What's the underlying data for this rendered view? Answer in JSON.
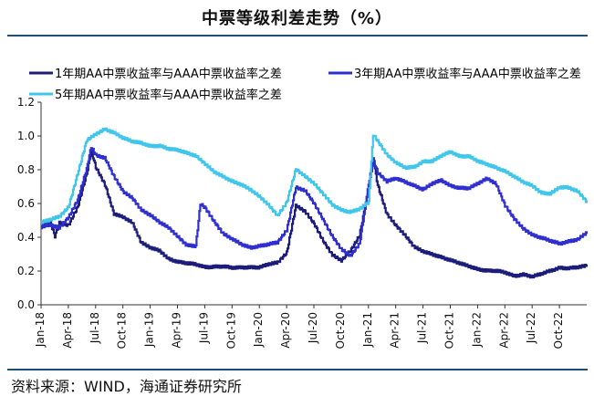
{
  "title": "中票等级利差走势（%）",
  "source": "资料来源：WIND，海通证券研究所",
  "colors": {
    "series1": "#1c1c7a",
    "series2": "#2f2fd1",
    "series3": "#3fc6ea",
    "frame": "#1f4e79"
  },
  "chart_data": {
    "type": "line",
    "title": "中票等级利差走势（%）",
    "ylim": [
      0,
      1.2
    ],
    "yticks": [
      "0.0",
      "0.2",
      "0.4",
      "0.6",
      "0.8",
      "1.0",
      "1.2"
    ],
    "xticks": [
      "Jan-18",
      "Apr-18",
      "Jul-18",
      "Oct-18",
      "Jan-19",
      "Apr-19",
      "Jul-19",
      "Oct-19",
      "Jan-20",
      "Apr-20",
      "Jul-20",
      "Oct-20",
      "Jan-21",
      "Apr-21",
      "Jul-21",
      "Oct-21",
      "Jan-22",
      "Apr-22",
      "Jul-22",
      "Oct-22"
    ],
    "x_month_range": [
      0,
      60
    ],
    "legend_position": "top",
    "series": [
      {
        "name": "1年期AA中票收益率与AAA中票收益率之差",
        "color": "#1c1c7a",
        "points": [
          [
            0,
            0.47
          ],
          [
            1,
            0.48
          ],
          [
            1.5,
            0.4
          ],
          [
            2,
            0.48
          ],
          [
            3,
            0.47
          ],
          [
            4,
            0.58
          ],
          [
            5,
            0.78
          ],
          [
            5.5,
            0.92
          ],
          [
            6,
            0.82
          ],
          [
            7,
            0.72
          ],
          [
            8,
            0.55
          ],
          [
            9,
            0.53
          ],
          [
            10,
            0.5
          ],
          [
            11,
            0.38
          ],
          [
            12,
            0.35
          ],
          [
            13,
            0.33
          ],
          [
            14,
            0.28
          ],
          [
            15,
            0.26
          ],
          [
            16,
            0.25
          ],
          [
            17,
            0.24
          ],
          [
            18,
            0.22
          ],
          [
            19,
            0.22
          ],
          [
            20,
            0.22
          ],
          [
            21,
            0.21
          ],
          [
            22,
            0.21
          ],
          [
            23,
            0.21
          ],
          [
            24,
            0.21
          ],
          [
            25,
            0.23
          ],
          [
            26,
            0.24
          ],
          [
            27,
            0.3
          ],
          [
            28,
            0.58
          ],
          [
            29,
            0.55
          ],
          [
            30,
            0.48
          ],
          [
            31,
            0.38
          ],
          [
            32,
            0.3
          ],
          [
            33,
            0.27
          ],
          [
            34,
            0.33
          ],
          [
            35,
            0.42
          ],
          [
            36,
            0.7
          ],
          [
            36.5,
            0.88
          ],
          [
            37,
            0.72
          ],
          [
            38,
            0.55
          ],
          [
            39,
            0.48
          ],
          [
            40,
            0.42
          ],
          [
            41,
            0.35
          ],
          [
            42,
            0.32
          ],
          [
            43,
            0.3
          ],
          [
            44,
            0.28
          ],
          [
            45,
            0.26
          ],
          [
            46,
            0.24
          ],
          [
            47,
            0.22
          ],
          [
            48,
            0.2
          ],
          [
            49,
            0.19
          ],
          [
            50,
            0.19
          ],
          [
            51,
            0.18
          ],
          [
            52,
            0.16
          ],
          [
            53,
            0.17
          ],
          [
            54,
            0.16
          ],
          [
            55,
            0.18
          ],
          [
            56,
            0.2
          ],
          [
            57,
            0.22
          ],
          [
            58,
            0.22
          ],
          [
            59,
            0.23
          ],
          [
            60,
            0.24
          ]
        ]
      },
      {
        "name": "3年期AA中票收益率与AAA中票收益率之差",
        "color": "#2f2fd1",
        "points": [
          [
            0,
            0.47
          ],
          [
            1,
            0.48
          ],
          [
            2,
            0.46
          ],
          [
            3,
            0.52
          ],
          [
            4,
            0.62
          ],
          [
            5,
            0.8
          ],
          [
            5.5,
            0.93
          ],
          [
            6,
            0.88
          ],
          [
            7,
            0.86
          ],
          [
            8,
            0.75
          ],
          [
            9,
            0.66
          ],
          [
            10,
            0.62
          ],
          [
            11,
            0.55
          ],
          [
            12,
            0.52
          ],
          [
            13,
            0.48
          ],
          [
            14,
            0.45
          ],
          [
            15,
            0.4
          ],
          [
            16,
            0.35
          ],
          [
            17,
            0.35
          ],
          [
            17.5,
            0.6
          ],
          [
            18,
            0.58
          ],
          [
            19,
            0.5
          ],
          [
            20,
            0.43
          ],
          [
            21,
            0.4
          ],
          [
            22,
            0.37
          ],
          [
            23,
            0.35
          ],
          [
            24,
            0.36
          ],
          [
            25,
            0.37
          ],
          [
            26,
            0.38
          ],
          [
            27,
            0.45
          ],
          [
            28,
            0.7
          ],
          [
            29,
            0.68
          ],
          [
            30,
            0.6
          ],
          [
            31,
            0.5
          ],
          [
            32,
            0.4
          ],
          [
            33,
            0.32
          ],
          [
            34,
            0.28
          ],
          [
            35,
            0.35
          ],
          [
            36,
            0.7
          ],
          [
            36.5,
            0.85
          ],
          [
            37,
            0.77
          ],
          [
            38,
            0.72
          ],
          [
            39,
            0.74
          ],
          [
            40,
            0.72
          ],
          [
            41,
            0.7
          ],
          [
            42,
            0.68
          ],
          [
            43,
            0.72
          ],
          [
            44,
            0.74
          ],
          [
            45,
            0.71
          ],
          [
            46,
            0.7
          ],
          [
            47,
            0.7
          ],
          [
            48,
            0.73
          ],
          [
            49,
            0.76
          ],
          [
            50,
            0.73
          ],
          [
            51,
            0.6
          ],
          [
            52,
            0.52
          ],
          [
            53,
            0.46
          ],
          [
            54,
            0.42
          ],
          [
            55,
            0.4
          ],
          [
            56,
            0.38
          ],
          [
            57,
            0.36
          ],
          [
            58,
            0.37
          ],
          [
            59,
            0.38
          ],
          [
            60,
            0.42
          ]
        ]
      },
      {
        "name": "5年期AA中票收益率与AAA中票收益率之差",
        "color": "#3fc6ea",
        "points": [
          [
            0,
            0.48
          ],
          [
            1,
            0.5
          ],
          [
            2,
            0.52
          ],
          [
            3,
            0.58
          ],
          [
            4,
            0.78
          ],
          [
            5,
            0.98
          ],
          [
            6,
            1.02
          ],
          [
            7,
            1.05
          ],
          [
            8,
            1.03
          ],
          [
            9,
            1.0
          ],
          [
            10,
            0.98
          ],
          [
            11,
            0.97
          ],
          [
            12,
            0.95
          ],
          [
            13,
            0.95
          ],
          [
            14,
            0.93
          ],
          [
            15,
            0.92
          ],
          [
            16,
            0.9
          ],
          [
            17,
            0.88
          ],
          [
            18,
            0.83
          ],
          [
            19,
            0.78
          ],
          [
            20,
            0.75
          ],
          [
            21,
            0.72
          ],
          [
            22,
            0.7
          ],
          [
            23,
            0.67
          ],
          [
            24,
            0.63
          ],
          [
            25,
            0.58
          ],
          [
            26,
            0.52
          ],
          [
            27,
            0.6
          ],
          [
            28,
            0.8
          ],
          [
            29,
            0.76
          ],
          [
            30,
            0.72
          ],
          [
            31,
            0.66
          ],
          [
            32,
            0.6
          ],
          [
            33,
            0.57
          ],
          [
            34,
            0.56
          ],
          [
            35,
            0.58
          ],
          [
            36,
            0.62
          ],
          [
            36.5,
            1.02
          ],
          [
            37,
            0.98
          ],
          [
            38,
            0.9
          ],
          [
            39,
            0.85
          ],
          [
            40,
            0.82
          ],
          [
            41,
            0.82
          ],
          [
            42,
            0.85
          ],
          [
            43,
            0.85
          ],
          [
            44,
            0.88
          ],
          [
            45,
            0.9
          ],
          [
            46,
            0.87
          ],
          [
            47,
            0.87
          ],
          [
            48,
            0.84
          ],
          [
            49,
            0.82
          ],
          [
            50,
            0.8
          ],
          [
            51,
            0.78
          ],
          [
            52,
            0.75
          ],
          [
            53,
            0.72
          ],
          [
            54,
            0.7
          ],
          [
            55,
            0.66
          ],
          [
            56,
            0.66
          ],
          [
            57,
            0.7
          ],
          [
            58,
            0.7
          ],
          [
            59,
            0.68
          ],
          [
            60,
            0.62
          ]
        ]
      }
    ]
  }
}
